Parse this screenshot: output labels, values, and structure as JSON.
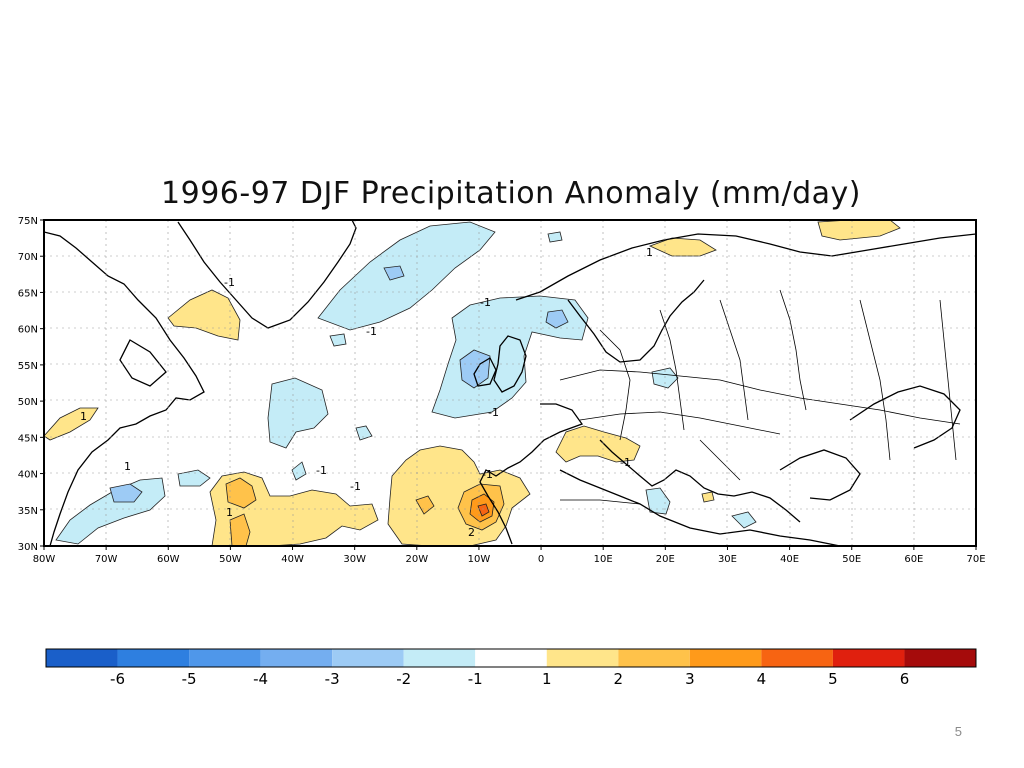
{
  "title": "1996-97 DJF Precipitation Anomaly (mm/day)",
  "page_number": "5",
  "map": {
    "lat_labels": [
      "75N",
      "70N",
      "65N",
      "60N",
      "55N",
      "50N",
      "45N",
      "40N",
      "35N",
      "30N"
    ],
    "lon_labels": [
      "80W",
      "70W",
      "60W",
      "50W",
      "40W",
      "30W",
      "20W",
      "10W",
      "0",
      "10E",
      "20E",
      "30E",
      "40E",
      "50E",
      "60E",
      "70E"
    ],
    "lat_range": [
      30,
      75
    ],
    "lon_range": [
      -80,
      70
    ],
    "contour_labels": [
      "-1",
      "-1",
      "-1",
      "-1",
      "-1",
      "-1",
      "-1",
      "-1",
      "1",
      "1",
      "1",
      "1",
      "2"
    ]
  },
  "colorbar": {
    "labels": [
      "-6",
      "-5",
      "-4",
      "-3",
      "-2",
      "-1",
      "1",
      "2",
      "3",
      "4",
      "5",
      "6"
    ],
    "colors": [
      "#1a5fc9",
      "#2e7fe0",
      "#4f97ea",
      "#74aef0",
      "#9dcbf5",
      "#c4ecf7",
      "#ffffff",
      "#ffe58a",
      "#ffc24a",
      "#ff9a1a",
      "#f76412",
      "#e0200e",
      "#a50b0b"
    ]
  }
}
